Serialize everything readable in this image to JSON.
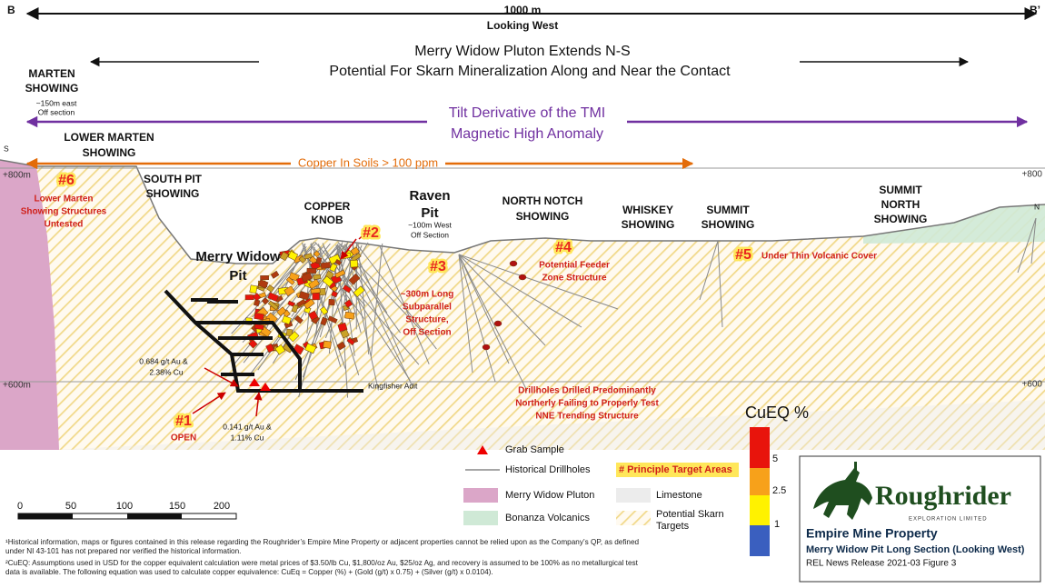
{
  "section": {
    "start": "B",
    "end": "B’",
    "length": "1000 m",
    "view": "Looking West",
    "south": "S",
    "north": "N"
  },
  "headline": [
    "Merry Widow Pluton Extends N-S",
    "Potential For Skarn Mineralization Along and Near the Contact"
  ],
  "anomaly": [
    "Tilt Derivative of the TMI",
    "Magnetic High Anomaly"
  ],
  "soils": "Copper In Soils > 100 ppm",
  "elevations": {
    "upper_left": "+800m",
    "upper_right": "+800",
    "lower_left": "+600m",
    "lower_right": "+600"
  },
  "showings": [
    [
      "MARTEN",
      "SHOWING"
    ],
    [
      "LOWER MARTEN",
      "SHOWING"
    ],
    [
      "SOUTH PIT",
      "SHOWING"
    ],
    [
      "COPPER",
      "KNOB"
    ],
    [
      "NORTH NOTCH",
      "SHOWING"
    ],
    [
      "WHISKEY",
      "SHOWING"
    ],
    [
      "SUMMIT",
      "SHOWING"
    ],
    [
      "SUMMIT",
      "NORTH",
      "SHOWING"
    ]
  ],
  "pits": [
    [
      "Merry Widow",
      "Pit"
    ],
    [
      "Raven",
      "Pit"
    ]
  ],
  "notes": [
    [
      "~150m east",
      "Off section"
    ],
    [
      "~100m West",
      "Off Section"
    ]
  ],
  "targets": [
    {
      "id": "#6",
      "text": [
        "Lower Marten",
        "Showing Structures",
        "Untested"
      ]
    },
    {
      "id": "#2"
    },
    {
      "id": "#3",
      "text": [
        "~300m Long",
        "Subparallel",
        "Structure,",
        "Off Section"
      ]
    },
    {
      "id": "#4",
      "text": [
        "Potential Feeder",
        "Zone Structure"
      ]
    },
    {
      "id": "#5",
      "text": [
        "Under Thin Volcanic Cover"
      ]
    },
    {
      "id": "#1",
      "text": [
        "OPEN"
      ]
    }
  ],
  "assays": [
    [
      "0.684 g/t Au &",
      "2.38% Cu"
    ],
    [
      "0.141 g/t Au &",
      "1.11% Cu"
    ]
  ],
  "drillhole_note": [
    "Drillholes Drilled Predominantly",
    "Northerly Failing  to Properly Test",
    "NNE Trending Structure"
  ],
  "adit": "Kingfisher Adit",
  "legend": {
    "grab": "Grab Sample",
    "drillholes": "Historical Drillholes",
    "targets": "# Principle Target Areas",
    "pluton": "Merry Widow Pluton",
    "limestone": "Limestone",
    "volcanics": "Bonanza Volcanics",
    "skarn": [
      "Potential Skarn",
      "Targets"
    ]
  },
  "grade_scale": {
    "title": "CuEQ %",
    "levels": [
      "5",
      "2.5",
      "1"
    ]
  },
  "scale_bar": [
    "0",
    "50",
    "100",
    "150",
    "200"
  ],
  "footnotes": [
    "¹Historical information, maps or figures contained in this release regarding the Roughrider’s Empire Mine Property or adjacent properties cannot be relied upon as the Company’s QP, as defined",
    "under NI 43-101 has not prepared nor verified the historical information.",
    "²CuEQ: Assumptions used in USD for the copper equivalent calculation were metal prices of $3.50/lb Cu, $1,800/oz Au, $25/oz Ag, and recovery is assumed to be 100% as no metallurgical test",
    "data is available. The following equation was used to calculate copper equivalence: CuEq = Copper (%) + (Gold (g/t) x 0.75) + (Silver (g/t) x 0.0104)."
  ],
  "company": {
    "name": "Roughrider",
    "tagline": "EXPLORATION LIMITED"
  },
  "caption": [
    "Empire Mine Property",
    "Merry Widow Pit Long Section (Looking West)",
    "REL News Release 2021-03 Figure 3"
  ]
}
